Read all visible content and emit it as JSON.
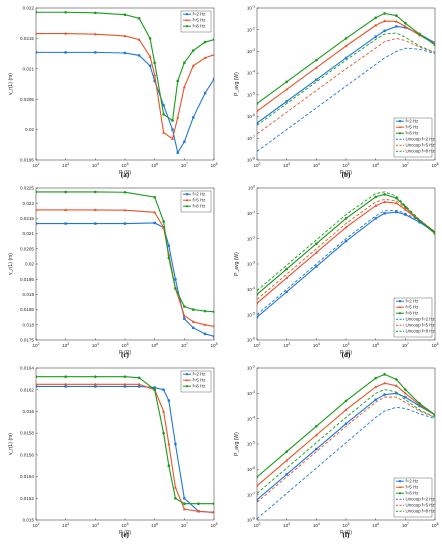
{
  "colors": {
    "f2": "#1f77d8",
    "f5": "#e8542a",
    "f8": "#1a9a1a",
    "axis": "#262626",
    "grid": "#dcdcdc"
  },
  "chart_data": [
    {
      "panel": "a",
      "type": "line",
      "xscale": "log",
      "xlim": [
        100,
        100000000
      ],
      "ylim": [
        0.0195,
        0.022
      ],
      "yticks": [
        "0.0195",
        "0.02",
        "0.0205",
        "0.021",
        "0.0215",
        "0.022"
      ],
      "yticksv": [
        0.0195,
        0.02,
        0.0205,
        0.021,
        0.0215,
        0.022
      ],
      "xlabel": "R (Ω)",
      "ylabel": "v_r(L) (m)",
      "legend": "top-right",
      "x": [
        100,
        1000,
        10000,
        100000,
        300000,
        700000,
        1000000,
        2000000,
        4000000,
        6000000,
        10000000,
        20000000,
        50000000,
        100000000
      ],
      "series": [
        {
          "name": "f=2 Hz",
          "key": "f2",
          "values": [
            0.02127,
            0.02127,
            0.02127,
            0.02126,
            0.02122,
            0.02105,
            0.0208,
            0.0204,
            0.02,
            0.01962,
            0.0198,
            0.0202,
            0.0206,
            0.02083
          ]
        },
        {
          "name": "f=5 Hz",
          "key": "f5",
          "values": [
            0.02158,
            0.02158,
            0.02157,
            0.02154,
            0.02148,
            0.0212,
            0.0209,
            0.01995,
            0.01985,
            0.0202,
            0.0207,
            0.02105,
            0.02118,
            0.02123
          ]
        },
        {
          "name": "f=8 Hz",
          "key": "f8",
          "values": [
            0.02193,
            0.02193,
            0.02192,
            0.02189,
            0.02183,
            0.0215,
            0.0211,
            0.02025,
            0.02015,
            0.0208,
            0.0211,
            0.0213,
            0.02144,
            0.02148
          ]
        }
      ]
    },
    {
      "panel": "b",
      "type": "line",
      "xscale": "log",
      "yscale": "log",
      "xlim": [
        100,
        100000000
      ],
      "ylim": [
        -8,
        -1
      ],
      "yticks": [
        "10",
        "10",
        "10",
        "10",
        "10",
        "10",
        "10",
        "10"
      ],
      "ytickexp": [
        "-8",
        "-7",
        "-6",
        "-5",
        "-4",
        "-3",
        "-2",
        "-1"
      ],
      "xlabel": "R (Ω)",
      "ylabel": "P_avg (W)",
      "legend": "bottom-right",
      "x": [
        100,
        1000,
        10000,
        100000,
        1000000,
        2000000,
        5000000,
        10000000,
        30000000,
        100000000
      ],
      "series": [
        {
          "name": "f=2 Hz",
          "key": "f2",
          "dash": false,
          "values": [
            -6.3,
            -5.3,
            -4.3,
            -3.3,
            -2.32,
            -2.05,
            -1.85,
            -1.9,
            -2.2,
            -2.6
          ]
        },
        {
          "name": "f=5 Hz",
          "key": "f5",
          "dash": false,
          "values": [
            -5.75,
            -4.75,
            -3.75,
            -2.75,
            -1.8,
            -1.6,
            -1.62,
            -1.85,
            -2.25,
            -2.65
          ]
        },
        {
          "name": "f=8 Hz",
          "key": "f8",
          "dash": false,
          "values": [
            -5.4,
            -4.4,
            -3.4,
            -2.4,
            -1.45,
            -1.25,
            -1.35,
            -1.7,
            -2.2,
            -2.7
          ]
        },
        {
          "name": "Uncoup f=2 Hz",
          "key": "f2",
          "dash": true,
          "values": [
            -7.6,
            -6.6,
            -5.6,
            -4.6,
            -3.6,
            -3.3,
            -3.0,
            -2.85,
            -2.9,
            -3.1
          ]
        },
        {
          "name": "Uncoup f=5 Hz",
          "key": "f5",
          "dash": true,
          "values": [
            -6.8,
            -5.8,
            -4.8,
            -3.8,
            -2.85,
            -2.55,
            -2.4,
            -2.5,
            -2.8,
            -3.05
          ]
        },
        {
          "name": "Uncoup f=8 Hz",
          "key": "f8",
          "dash": true,
          "values": [
            -6.4,
            -5.4,
            -4.4,
            -3.4,
            -2.45,
            -2.2,
            -2.15,
            -2.35,
            -2.75,
            -3.05
          ]
        }
      ]
    },
    {
      "panel": "c",
      "type": "line",
      "xscale": "log",
      "xlim": [
        100,
        100000000
      ],
      "ylim": [
        0.0175,
        0.0225
      ],
      "yticks": [
        "0.0175",
        "0.018",
        "0.0185",
        "0.019",
        "0.0195",
        "0.02",
        "0.0205",
        "0.021",
        "0.0215",
        "0.022",
        "0.0225"
      ],
      "yticksv": [
        0.0175,
        0.018,
        0.0185,
        0.019,
        0.0195,
        0.02,
        0.0205,
        0.021,
        0.0215,
        0.022,
        0.0225
      ],
      "xlabel": "R (Ω)",
      "ylabel": "v_r(L) (m)",
      "legend": "top-right",
      "x": [
        100,
        1000,
        10000,
        100000,
        1000000,
        2000000,
        3000000,
        5000000,
        10000000,
        20000000,
        50000000,
        100000000
      ],
      "series": [
        {
          "name": "f=2 Hz",
          "key": "f2",
          "values": [
            0.02133,
            0.02133,
            0.02133,
            0.02133,
            0.02135,
            0.0212,
            0.0206,
            0.0195,
            0.0182,
            0.0179,
            0.0177,
            0.01762
          ]
        },
        {
          "name": "f=5 Hz",
          "key": "f5",
          "values": [
            0.02178,
            0.02178,
            0.02178,
            0.02177,
            0.0217,
            0.0212,
            0.0203,
            0.0192,
            0.0183,
            0.0181,
            0.018,
            0.01795
          ]
        },
        {
          "name": "f=8 Hz",
          "key": "f8",
          "values": [
            0.02237,
            0.02237,
            0.02237,
            0.02236,
            0.0222,
            0.0214,
            0.0202,
            0.0192,
            0.0186,
            0.0185,
            0.01845,
            0.01843
          ]
        }
      ]
    },
    {
      "panel": "d",
      "type": "line",
      "xscale": "log",
      "yscale": "log",
      "xlim": [
        100,
        100000000
      ],
      "ylim": [
        -6,
        0
      ],
      "yticks": [
        "10",
        "10",
        "10",
        "10",
        "10",
        "10",
        "10"
      ],
      "ytickexp": [
        "-6",
        "-5",
        "-4",
        "-3",
        "-2",
        "-1",
        "0"
      ],
      "xlabel": "R (Ω)",
      "ylabel": "P_avg (W)",
      "legend": "bottom-right",
      "x": [
        100,
        1000,
        10000,
        100000,
        1000000,
        2000000,
        5000000,
        10000000,
        30000000,
        100000000
      ],
      "series": [
        {
          "name": "f=2 Hz",
          "key": "f2",
          "dash": false,
          "values": [
            -5.1,
            -4.1,
            -3.1,
            -2.1,
            -1.2,
            -1.0,
            -0.95,
            -1.05,
            -1.35,
            -1.75
          ]
        },
        {
          "name": "f=5 Hz",
          "key": "f5",
          "dash": false,
          "values": [
            -4.55,
            -3.55,
            -2.55,
            -1.55,
            -0.7,
            -0.55,
            -0.6,
            -0.85,
            -1.3,
            -1.75
          ]
        },
        {
          "name": "f=8 Hz",
          "key": "f8",
          "dash": false,
          "values": [
            -4.2,
            -3.2,
            -2.2,
            -1.2,
            -0.35,
            -0.25,
            -0.4,
            -0.75,
            -1.3,
            -1.8
          ]
        },
        {
          "name": "Uncoup f=2 Hz",
          "key": "f2",
          "dash": true,
          "values": [
            -5.0,
            -4.0,
            -3.0,
            -2.0,
            -1.1,
            -0.9,
            -0.88,
            -1.0,
            -1.3,
            -1.72
          ]
        },
        {
          "name": "Uncoup f=5 Hz",
          "key": "f5",
          "dash": true,
          "values": [
            -4.4,
            -3.4,
            -2.4,
            -1.4,
            -0.55,
            -0.45,
            -0.5,
            -0.8,
            -1.25,
            -1.72
          ]
        },
        {
          "name": "Uncoup f=8 Hz",
          "key": "f8",
          "dash": true,
          "values": [
            -4.05,
            -3.05,
            -2.05,
            -1.05,
            -0.22,
            -0.15,
            -0.32,
            -0.7,
            -1.25,
            -1.75
          ]
        }
      ]
    },
    {
      "panel": "e",
      "type": "line",
      "xscale": "log",
      "xlim": [
        100,
        100000000
      ],
      "ylim": [
        0.015,
        0.0164
      ],
      "yticks": [
        "0.015",
        "0.0152",
        "0.0154",
        "0.0156",
        "0.0158",
        "0.016",
        "0.0162",
        "0.0164"
      ],
      "yticksv": [
        0.015,
        0.0152,
        0.0154,
        0.0156,
        0.0158,
        0.016,
        0.0162,
        0.0164
      ],
      "xlabel": "R (Ω)",
      "ylabel": "v_r(L) (m)",
      "legend": "top-right",
      "x": [
        100,
        1000,
        10000,
        100000,
        300000,
        1000000,
        2000000,
        3000000,
        5000000,
        10000000,
        30000000,
        100000000
      ],
      "series": [
        {
          "name": "f=2 Hz",
          "key": "f2",
          "values": [
            0.01623,
            0.01623,
            0.01623,
            0.01623,
            0.01623,
            0.01622,
            0.0162,
            0.0161,
            0.0157,
            0.0152,
            0.01508,
            0.01507
          ]
        },
        {
          "name": "f=5 Hz",
          "key": "f5",
          "values": [
            0.01625,
            0.01625,
            0.01625,
            0.01625,
            0.01625,
            0.0162,
            0.016,
            0.0157,
            0.0153,
            0.0151,
            0.01508,
            0.01507
          ]
        },
        {
          "name": "f=8 Hz",
          "key": "f8",
          "values": [
            0.01632,
            0.01632,
            0.01632,
            0.01632,
            0.01631,
            0.0162,
            0.0158,
            0.0155,
            0.0152,
            0.01515,
            0.01515,
            0.01515
          ]
        }
      ]
    },
    {
      "panel": "f",
      "type": "line",
      "xscale": "log",
      "yscale": "log",
      "xlim": [
        100,
        100000000
      ],
      "ylim": [
        -8,
        -2
      ],
      "yticks": [
        "10",
        "10",
        "10",
        "10",
        "10",
        "10",
        "10"
      ],
      "ytickexp": [
        "-8",
        "-7",
        "-6",
        "-5",
        "-4",
        "-3",
        "-2"
      ],
      "xlabel": "R (Ω)",
      "ylabel": "P_avg (W)",
      "legend": "bottom-right",
      "x": [
        100,
        1000,
        10000,
        100000,
        1000000,
        2000000,
        5000000,
        10000000,
        30000000,
        100000000
      ],
      "series": [
        {
          "name": "f=2 Hz",
          "key": "f2",
          "dash": false,
          "values": [
            -7.2,
            -6.2,
            -5.2,
            -4.2,
            -3.25,
            -3.05,
            -3.0,
            -3.15,
            -3.5,
            -3.85
          ]
        },
        {
          "name": "f=5 Hz",
          "key": "f5",
          "dash": false,
          "values": [
            -6.65,
            -5.65,
            -4.65,
            -3.65,
            -2.75,
            -2.6,
            -2.7,
            -3.0,
            -3.45,
            -3.85
          ]
        },
        {
          "name": "f=8 Hz",
          "key": "f8",
          "dash": false,
          "values": [
            -6.3,
            -5.3,
            -4.3,
            -3.3,
            -2.4,
            -2.25,
            -2.45,
            -2.85,
            -3.4,
            -3.85
          ]
        },
        {
          "name": "Uncoup f=2 Hz",
          "key": "f2",
          "dash": true,
          "values": [
            -7.95,
            -6.95,
            -5.95,
            -4.95,
            -3.95,
            -3.7,
            -3.55,
            -3.6,
            -3.8,
            -4.0
          ]
        },
        {
          "name": "Uncoup f=5 Hz",
          "key": "f5",
          "dash": true,
          "values": [
            -7.3,
            -6.3,
            -5.3,
            -4.3,
            -3.35,
            -3.15,
            -3.15,
            -3.35,
            -3.7,
            -3.95
          ]
        },
        {
          "name": "Uncoup f=8 Hz",
          "key": "f8",
          "dash": true,
          "values": [
            -6.95,
            -5.95,
            -4.95,
            -3.95,
            -3.0,
            -2.85,
            -2.95,
            -3.25,
            -3.65,
            -3.95
          ]
        }
      ]
    }
  ],
  "panel_labels": [
    "(a)",
    "(b)",
    "(c)",
    "(d)",
    "(e)",
    "(f)"
  ],
  "xtick_base": "10",
  "xtick_exps": [
    "2",
    "3",
    "4",
    "5",
    "6",
    "7",
    "8"
  ]
}
